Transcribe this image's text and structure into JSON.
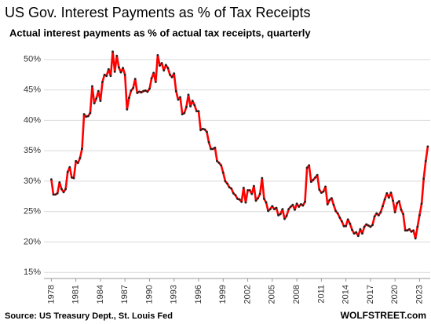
{
  "chart_data": {
    "type": "line",
    "title": "US Gov. Interest Payments as % of Tax Receipts",
    "subtitle": "Actual interest payments as % of actual tax receipts, quarterly",
    "source": "Source: US Treasury Dept., St. Louis Fed",
    "brand": "WOLFSTREET.com",
    "x": [
      1978,
      1978.25,
      1978.5,
      1978.75,
      1979,
      1979.25,
      1979.5,
      1979.75,
      1980,
      1980.25,
      1980.5,
      1980.75,
      1981,
      1981.25,
      1981.5,
      1981.75,
      1982,
      1982.25,
      1982.5,
      1982.75,
      1983,
      1983.25,
      1983.5,
      1983.75,
      1984,
      1984.25,
      1984.5,
      1984.75,
      1985,
      1985.25,
      1985.5,
      1985.75,
      1986,
      1986.25,
      1986.5,
      1986.75,
      1987,
      1987.25,
      1987.5,
      1987.75,
      1988,
      1988.25,
      1988.5,
      1988.75,
      1989,
      1989.25,
      1989.5,
      1989.75,
      1990,
      1990.25,
      1990.5,
      1990.75,
      1991,
      1991.25,
      1991.5,
      1991.75,
      1992,
      1992.25,
      1992.5,
      1992.75,
      1993,
      1993.25,
      1993.5,
      1993.75,
      1994,
      1994.25,
      1994.5,
      1994.75,
      1995,
      1995.25,
      1995.5,
      1995.75,
      1996,
      1996.25,
      1996.5,
      1996.75,
      1997,
      1997.25,
      1997.5,
      1997.75,
      1998,
      1998.25,
      1998.5,
      1998.75,
      1999,
      1999.25,
      1999.5,
      1999.75,
      2000,
      2000.25,
      2000.5,
      2000.75,
      2001,
      2001.25,
      2001.5,
      2001.75,
      2002,
      2002.25,
      2002.5,
      2002.75,
      2003,
      2003.25,
      2003.5,
      2003.75,
      2004,
      2004.25,
      2004.5,
      2004.75,
      2005,
      2005.25,
      2005.5,
      2005.75,
      2006,
      2006.25,
      2006.5,
      2006.75,
      2007,
      2007.25,
      2007.5,
      2007.75,
      2008,
      2008.25,
      2008.5,
      2008.75,
      2009,
      2009.25,
      2009.5,
      2009.75,
      2010,
      2010.25,
      2010.5,
      2010.75,
      2011,
      2011.25,
      2011.5,
      2011.75,
      2012,
      2012.25,
      2012.5,
      2012.75,
      2013,
      2013.25,
      2013.5,
      2013.75,
      2014,
      2014.25,
      2014.5,
      2014.75,
      2015,
      2015.25,
      2015.5,
      2015.75,
      2016,
      2016.25,
      2016.5,
      2016.75,
      2017,
      2017.25,
      2017.5,
      2017.75,
      2018,
      2018.25,
      2018.5,
      2018.75,
      2019,
      2019.25,
      2019.5,
      2019.75,
      2020,
      2020.25,
      2020.5,
      2020.75,
      2021,
      2021.25,
      2021.5,
      2021.75,
      2022,
      2022.25,
      2022.5,
      2022.75,
      2023,
      2023.25,
      2023.5,
      2023.75,
      2024
    ],
    "series": [
      {
        "name": "Interest payments as % of tax receipts",
        "color": "#ff0000",
        "marker_color": "#222222",
        "values": [
          30.3,
          27.8,
          27.8,
          28.0,
          29.8,
          28.7,
          28.2,
          28.7,
          31.5,
          32.3,
          30.6,
          30.5,
          33.3,
          33.0,
          33.8,
          35.3,
          41.0,
          40.6,
          40.7,
          41.2,
          45.6,
          42.8,
          43.6,
          44.8,
          43.2,
          46.3,
          47.5,
          47.3,
          48.4,
          47.3,
          51.3,
          48.0,
          50.6,
          48.7,
          47.9,
          48.6,
          47.5,
          41.8,
          43.7,
          44.9,
          45.3,
          46.8,
          44.5,
          44.7,
          44.6,
          44.8,
          44.9,
          44.7,
          45.2,
          46.9,
          47.8,
          46.3,
          50.7,
          49.0,
          49.4,
          48.2,
          49.1,
          48.6,
          47.5,
          47.1,
          47.7,
          44.8,
          43.4,
          43.8,
          41.0,
          41.2,
          42.2,
          44.2,
          42.3,
          43.2,
          42.5,
          41.5,
          41.5,
          38.4,
          38.6,
          38.5,
          38.1,
          36.4,
          35.3,
          35.3,
          35.5,
          33.3,
          33.0,
          32.6,
          31.4,
          30.0,
          29.6,
          29.0,
          28.8,
          28.0,
          27.7,
          27.1,
          27.0,
          26.6,
          28.9,
          26.5,
          28.5,
          28.5,
          27.9,
          29.2,
          26.8,
          27.2,
          27.9,
          30.5,
          27.1,
          26.5,
          25.1,
          25.4,
          25.9,
          25.4,
          25.6,
          24.4,
          24.6,
          25.4,
          23.8,
          24.3,
          25.4,
          25.8,
          26.1,
          25.3,
          26.3,
          25.8,
          26.2,
          26.0,
          26.6,
          32.2,
          32.6,
          29.9,
          30.2,
          30.6,
          31.0,
          28.6,
          28.1,
          28.3,
          29.1,
          26.2,
          26.9,
          27.2,
          26.1,
          25.1,
          24.7,
          24.0,
          23.4,
          22.6,
          22.6,
          23.7,
          23.0,
          22.0,
          21.4,
          21.6,
          21.0,
          22.1,
          21.4,
          22.5,
          22.9,
          22.7,
          22.5,
          22.8,
          24.2,
          24.7,
          24.4,
          24.9,
          25.9,
          27.0,
          28.0,
          27.3,
          28.1,
          26.8,
          24.9,
          26.4,
          26.7,
          25.3,
          24.6,
          21.9,
          21.9,
          22.1,
          21.7,
          21.9,
          20.6,
          22.5,
          24.4,
          26.3,
          30.4,
          33.3,
          35.7
        ]
      }
    ],
    "xlim": [
      1977.1,
      2024.3
    ],
    "ylim": [
      14,
      52.3
    ],
    "xticks": [
      1978,
      1981,
      1984,
      1987,
      1990,
      1993,
      1996,
      1999,
      2002,
      2005,
      2008,
      2011,
      2014,
      2017,
      2020,
      2023
    ],
    "yticks": [
      {
        "value": 15,
        "label": "15%"
      },
      {
        "value": 20,
        "label": "20%"
      },
      {
        "value": 25,
        "label": "25%"
      },
      {
        "value": 30,
        "label": "30%"
      },
      {
        "value": 35,
        "label": "35%"
      },
      {
        "value": 40,
        "label": "40%"
      },
      {
        "value": 45,
        "label": "45%"
      },
      {
        "value": 50,
        "label": "50%"
      }
    ],
    "grid": true
  }
}
